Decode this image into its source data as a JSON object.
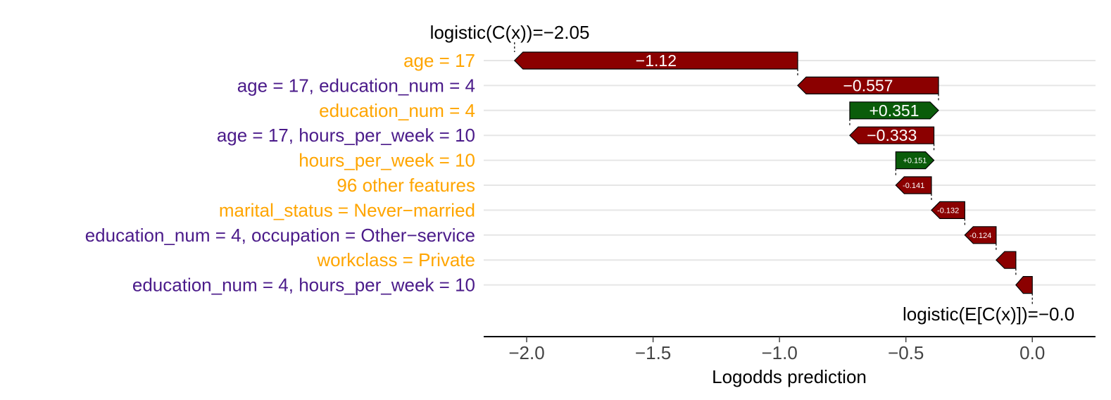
{
  "chart_data": {
    "type": "waterfall",
    "xlabel": "Logodds prediction",
    "xlim": [
      -2.17,
      0.25
    ],
    "x_ticks": [
      -2.0,
      -1.5,
      -1.0,
      -0.5,
      0.0
    ],
    "x_tick_labels": [
      "−2.0",
      "−1.5",
      "−1.0",
      "−0.5",
      "0.0"
    ],
    "grid": "horizontal",
    "start_annotation": "logistic(E[C(x)])=−0.0",
    "end_annotation": "logistic(C(x))=−2.05",
    "start_value": 0.0,
    "end_value": -2.05,
    "colors": {
      "positive": "#0a5c0a",
      "negative": "#8b0000",
      "single_feature": "#ffa500",
      "interaction": "#4b1b8a"
    },
    "bars": [
      {
        "feature": "age = 17",
        "kind": "single",
        "value": -1.12,
        "label": "−1.12"
      },
      {
        "feature": "age = 17, education_num = 4",
        "kind": "interaction",
        "value": -0.557,
        "label": "−0.557"
      },
      {
        "feature": "education_num = 4",
        "kind": "single",
        "value": 0.351,
        "label": "+0.351"
      },
      {
        "feature": "age = 17, hours_per_week = 10",
        "kind": "interaction",
        "value": -0.333,
        "label": "−0.333"
      },
      {
        "feature": "hours_per_week = 10",
        "kind": "single",
        "value": 0.151,
        "label": "+0.151"
      },
      {
        "feature": "96 other features",
        "kind": "single",
        "value": -0.141,
        "label": "-0.141"
      },
      {
        "feature": "marital_status = Never−married",
        "kind": "single",
        "value": -0.132,
        "label": "-0.132"
      },
      {
        "feature": "education_num = 4, occupation = Other−service",
        "kind": "interaction",
        "value": -0.124,
        "label": "-0.124"
      },
      {
        "feature": "workclass = Private",
        "kind": "single",
        "value": -0.078,
        "label": ""
      },
      {
        "feature": "education_num = 4, hours_per_week = 10",
        "kind": "interaction",
        "value": -0.065,
        "label": ""
      }
    ]
  }
}
